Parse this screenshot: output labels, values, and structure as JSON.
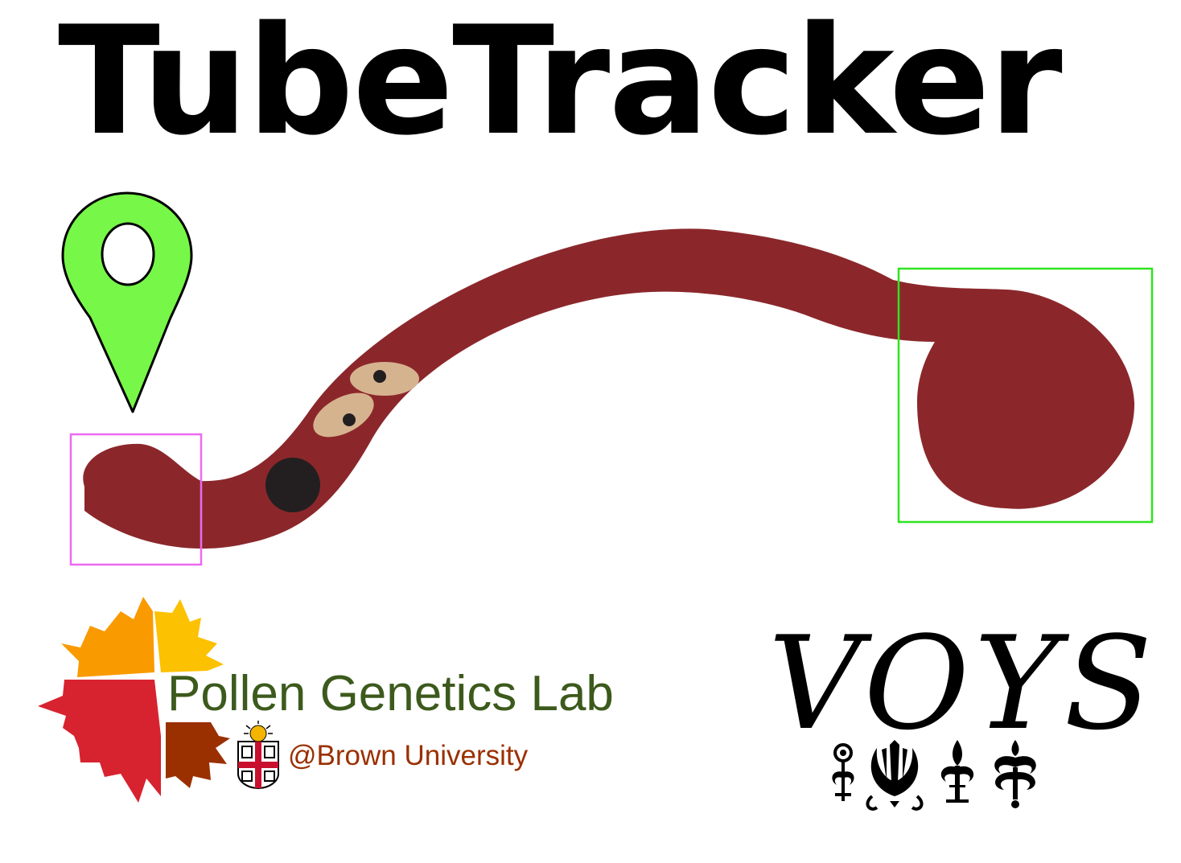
{
  "title": "TubeTracker",
  "lab": {
    "name": "Pollen Genetics Lab",
    "affiliation": "@Brown University"
  },
  "voys_logo": {
    "text": "VOYS"
  },
  "colors": {
    "tube": "#8b272b",
    "pin": "#77f748",
    "tip_box": "#ec6af0",
    "grain_box": "#2fe41f",
    "nucleus_fill": "#d6b38f",
    "vegetative_nucleus": "#231f20",
    "lab_text": "#3c5a1c",
    "affiliation_text": "#9a3000"
  },
  "icons": [
    "map-pin-icon",
    "pollen-sun-logo-icon",
    "brown-shield-icon",
    "voys-ornament-icon"
  ]
}
